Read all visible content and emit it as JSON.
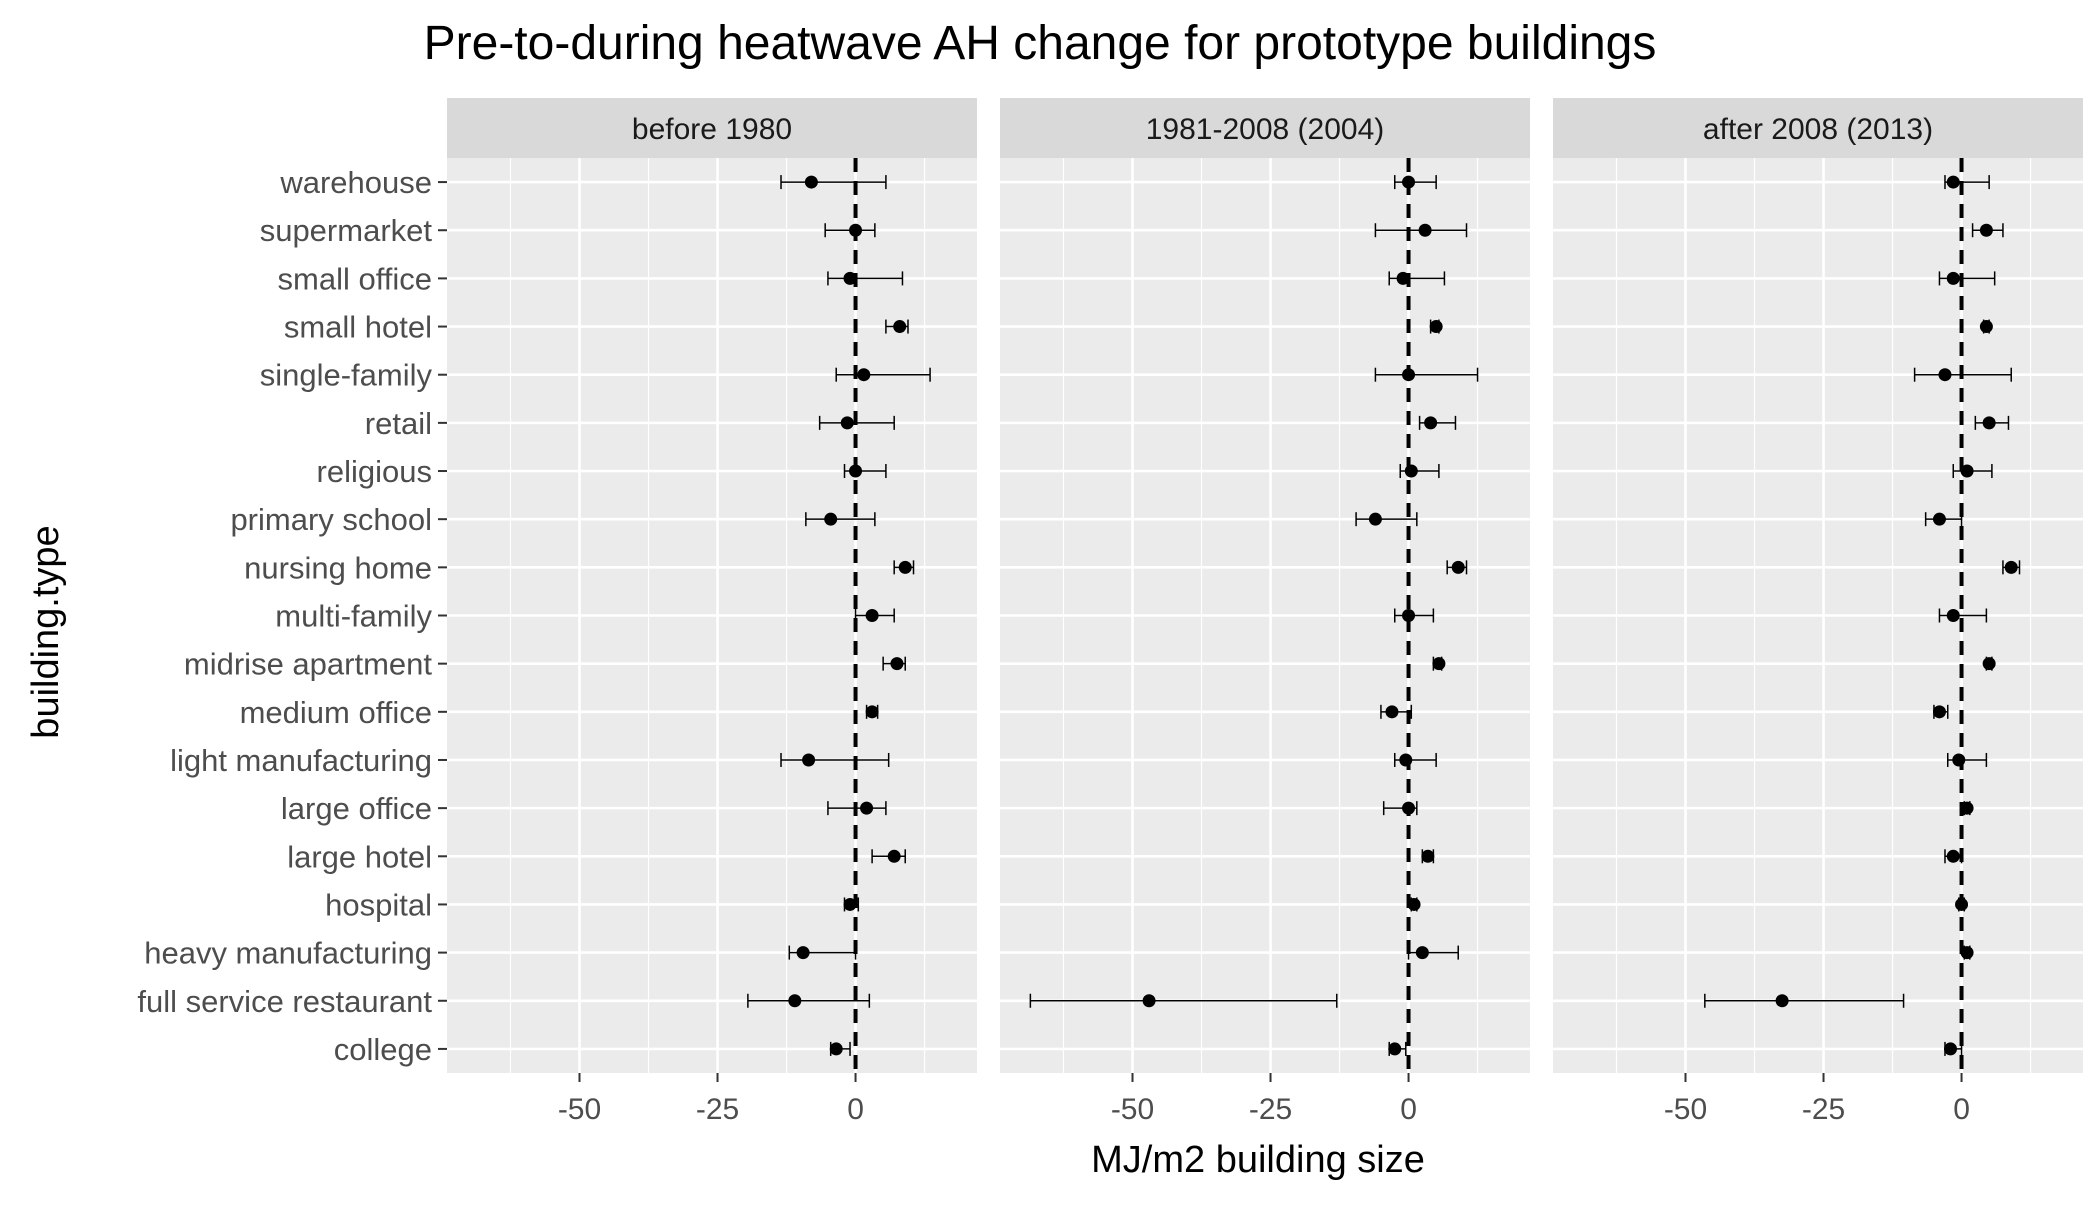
{
  "chart_data": {
    "type": "scatter",
    "title": "Pre-to-during heatwave AH change for prototype buildings",
    "xlabel": "MJ/m2 building size",
    "ylabel": "building.type",
    "xlim": [
      -74,
      22
    ],
    "x_ticks": [
      -50,
      -25,
      0
    ],
    "x_tick_labels": [
      "-50",
      "-25",
      "0"
    ],
    "reference_line_x": 0,
    "grid": true,
    "categories": [
      "warehouse",
      "supermarket",
      "small office",
      "small hotel",
      "single-family",
      "retail",
      "religious",
      "primary school",
      "nursing home",
      "multi-family",
      "midrise apartment",
      "medium office",
      "light manufacturing",
      "large office",
      "large hotel",
      "hospital",
      "heavy manufacturing",
      "full service restaurant",
      "college"
    ],
    "panels": [
      {
        "name": "before 1980",
        "points": [
          {
            "y": "warehouse",
            "x": -8,
            "xmin": -13.5,
            "xmax": 5.5
          },
          {
            "y": "supermarket",
            "x": 0,
            "xmin": -5.5,
            "xmax": 3.5
          },
          {
            "y": "small office",
            "x": -1,
            "xmin": -5,
            "xmax": 8.5
          },
          {
            "y": "small hotel",
            "x": 8,
            "xmin": 5.5,
            "xmax": 9.5
          },
          {
            "y": "single-family",
            "x": 1.5,
            "xmin": -3.5,
            "xmax": 13.5
          },
          {
            "y": "retail",
            "x": -1.5,
            "xmin": -6.5,
            "xmax": 7
          },
          {
            "y": "religious",
            "x": 0,
            "xmin": -2,
            "xmax": 5.5
          },
          {
            "y": "primary school",
            "x": -4.5,
            "xmin": -9,
            "xmax": 3.5
          },
          {
            "y": "nursing home",
            "x": 9,
            "xmin": 7,
            "xmax": 10.5
          },
          {
            "y": "multi-family",
            "x": 3,
            "xmin": 0,
            "xmax": 7
          },
          {
            "y": "midrise apartment",
            "x": 7.5,
            "xmin": 5,
            "xmax": 9
          },
          {
            "y": "medium office",
            "x": 3,
            "xmin": 2,
            "xmax": 4
          },
          {
            "y": "light manufacturing",
            "x": -8.5,
            "xmin": -13.5,
            "xmax": 6
          },
          {
            "y": "large office",
            "x": 2,
            "xmin": -5,
            "xmax": 5.5
          },
          {
            "y": "large hotel",
            "x": 7,
            "xmin": 3,
            "xmax": 9
          },
          {
            "y": "hospital",
            "x": -1,
            "xmin": -2,
            "xmax": 0.5
          },
          {
            "y": "heavy manufacturing",
            "x": -9.5,
            "xmin": -12,
            "xmax": 0
          },
          {
            "y": "full service restaurant",
            "x": -11,
            "xmin": -19.5,
            "xmax": 2.5
          },
          {
            "y": "college",
            "x": -3.5,
            "xmin": -4.5,
            "xmax": -1
          }
        ]
      },
      {
        "name": "1981-2008 (2004)",
        "points": [
          {
            "y": "warehouse",
            "x": 0,
            "xmin": -2.5,
            "xmax": 5
          },
          {
            "y": "supermarket",
            "x": 3,
            "xmin": -6,
            "xmax": 10.5
          },
          {
            "y": "small office",
            "x": -1,
            "xmin": -3.5,
            "xmax": 6.5
          },
          {
            "y": "small hotel",
            "x": 5,
            "xmin": 4,
            "xmax": 5.5
          },
          {
            "y": "single-family",
            "x": 0,
            "xmin": -6,
            "xmax": 12.5
          },
          {
            "y": "retail",
            "x": 4,
            "xmin": 2,
            "xmax": 8.5
          },
          {
            "y": "religious",
            "x": 0.5,
            "xmin": -1.5,
            "xmax": 5.5
          },
          {
            "y": "primary school",
            "x": -6,
            "xmin": -9.5,
            "xmax": 1.5
          },
          {
            "y": "nursing home",
            "x": 9,
            "xmin": 7,
            "xmax": 10.5
          },
          {
            "y": "multi-family",
            "x": 0,
            "xmin": -2.5,
            "xmax": 4.5
          },
          {
            "y": "midrise apartment",
            "x": 5.5,
            "xmin": 4.5,
            "xmax": 6
          },
          {
            "y": "medium office",
            "x": -3,
            "xmin": -5,
            "xmax": 0.5
          },
          {
            "y": "light manufacturing",
            "x": -0.5,
            "xmin": -2.5,
            "xmax": 5
          },
          {
            "y": "large office",
            "x": 0,
            "xmin": -4.5,
            "xmax": 1.5
          },
          {
            "y": "large hotel",
            "x": 3.5,
            "xmin": 2.5,
            "xmax": 4.5
          },
          {
            "y": "hospital",
            "x": 1,
            "xmin": 0.5,
            "xmax": 1.5
          },
          {
            "y": "heavy manufacturing",
            "x": 2.5,
            "xmin": 0,
            "xmax": 9
          },
          {
            "y": "full service restaurant",
            "x": -47,
            "xmin": -68.5,
            "xmax": -13
          },
          {
            "y": "college",
            "x": -2.5,
            "xmin": -3.5,
            "xmax": -0.5
          }
        ]
      },
      {
        "name": "after 2008 (2013)",
        "points": [
          {
            "y": "warehouse",
            "x": -1.5,
            "xmin": -3,
            "xmax": 5
          },
          {
            "y": "supermarket",
            "x": 4.5,
            "xmin": 2,
            "xmax": 7.5
          },
          {
            "y": "small office",
            "x": -1.5,
            "xmin": -4,
            "xmax": 6
          },
          {
            "y": "small hotel",
            "x": 4.5,
            "xmin": 4,
            "xmax": 5
          },
          {
            "y": "single-family",
            "x": -3,
            "xmin": -8.5,
            "xmax": 9
          },
          {
            "y": "retail",
            "x": 5,
            "xmin": 2.5,
            "xmax": 8.5
          },
          {
            "y": "religious",
            "x": 1,
            "xmin": -1.5,
            "xmax": 5.5
          },
          {
            "y": "primary school",
            "x": -4,
            "xmin": -6.5,
            "xmax": 0
          },
          {
            "y": "nursing home",
            "x": 9,
            "xmin": 7.5,
            "xmax": 10.5
          },
          {
            "y": "multi-family",
            "x": -1.5,
            "xmin": -4,
            "xmax": 4.5
          },
          {
            "y": "midrise apartment",
            "x": 5,
            "xmin": 4.5,
            "xmax": 5.5
          },
          {
            "y": "medium office",
            "x": -4,
            "xmin": -5,
            "xmax": -2.5
          },
          {
            "y": "light manufacturing",
            "x": -0.5,
            "xmin": -2.5,
            "xmax": 4.5
          },
          {
            "y": "large office",
            "x": 1,
            "xmin": 0.5,
            "xmax": 1.5
          },
          {
            "y": "large hotel",
            "x": -1.5,
            "xmin": -3,
            "xmax": 0
          },
          {
            "y": "hospital",
            "x": 0,
            "xmin": -0.5,
            "xmax": 0.5
          },
          {
            "y": "heavy manufacturing",
            "x": 1,
            "xmin": 0.5,
            "xmax": 1.5
          },
          {
            "y": "full service restaurant",
            "x": -32.5,
            "xmin": -46.5,
            "xmax": -10.5
          },
          {
            "y": "college",
            "x": -2,
            "xmin": -3,
            "xmax": 0
          }
        ]
      }
    ]
  }
}
